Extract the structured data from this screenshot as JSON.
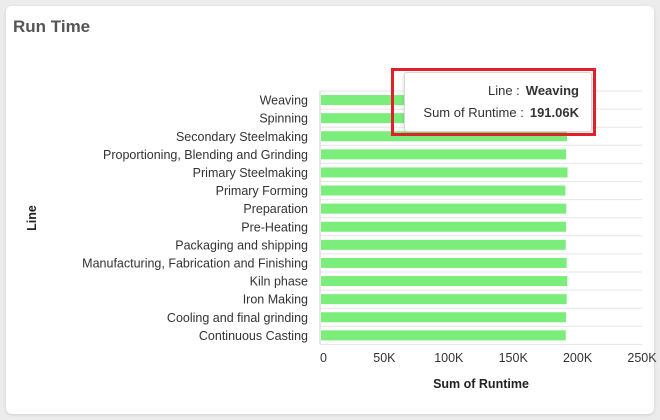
{
  "card": {
    "title": "Run Time"
  },
  "chart_data": {
    "type": "bar",
    "orientation": "horizontal",
    "categories": [
      "Weaving",
      "Spinning",
      "Secondary Steelmaking",
      "Proportioning, Blending and Grinding",
      "Primary Steelmaking",
      "Primary Forming",
      "Preparation",
      "Pre-Heating",
      "Packaging and shipping",
      "Manufacturing, Fabrication and Finishing",
      "Kiln phase",
      "Iron Making",
      "Cooling and final grinding",
      "Continuous Casting"
    ],
    "values": [
      191060,
      191500,
      191800,
      191000,
      192200,
      190500,
      191200,
      191000,
      190800,
      191500,
      192000,
      191500,
      191000,
      190800
    ],
    "xlabel": "Sum of Runtime",
    "ylabel": "Line",
    "xlim": [
      0,
      250000
    ],
    "xticks": [
      0,
      50000,
      100000,
      150000,
      200000,
      250000
    ],
    "xtick_labels": [
      "0",
      "50K",
      "100K",
      "150K",
      "200K",
      "250K"
    ],
    "bar_color": "#7aed7a",
    "grid": true
  },
  "tooltip": {
    "line_key": "Line :",
    "line_value": "Weaving",
    "runtime_key": "Sum of Runtime :",
    "runtime_value": "191.06K"
  },
  "highlight_color": "#e0202a"
}
